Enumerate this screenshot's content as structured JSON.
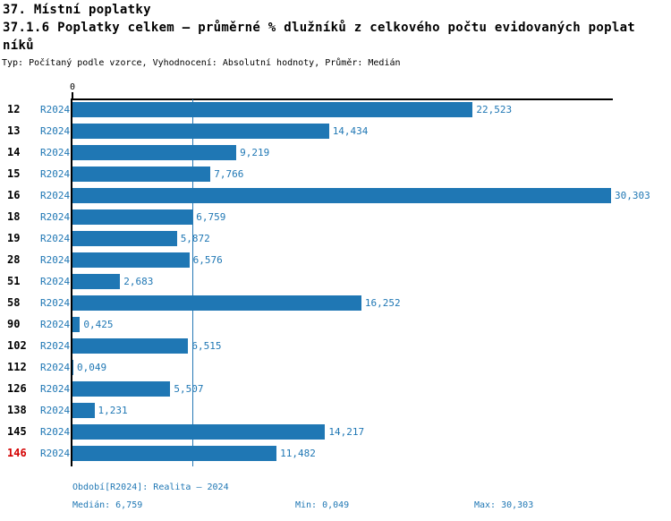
{
  "header": {
    "title": "37. Místní poplatky",
    "subtitle_line1": "37.1.6 Poplatky celkem – průměrné % dlužníků z celkového počtu evidovaných poplat",
    "subtitle_line2": "níků",
    "meta": "Typ: Počítaný podle vzorce, Vyhodnocení: Absolutní hodnoty, Průměr: Medián"
  },
  "chart": {
    "axis_zero_label": "0",
    "bar_color": "#1f77b4",
    "label_color": "#1f77b4",
    "median_line_color": "#2778b4",
    "highlight_color": "#d40000"
  },
  "chart_data": {
    "type": "bar",
    "orientation": "horizontal",
    "series_name": "R2024",
    "categories": [
      "12",
      "13",
      "14",
      "15",
      "16",
      "18",
      "19",
      "28",
      "51",
      "58",
      "90",
      "102",
      "112",
      "126",
      "138",
      "145",
      "146"
    ],
    "values": [
      22.523,
      14.434,
      9.219,
      7.766,
      30.303,
      6.759,
      5.872,
      6.576,
      2.683,
      16.252,
      0.425,
      6.515,
      0.049,
      5.507,
      1.231,
      14.217,
      11.482
    ],
    "value_labels": [
      "22,523",
      "14,434",
      "9,219",
      "7,766",
      "30,303",
      "6,759",
      "5,872",
      "6,576",
      "2,683",
      "16,252",
      "0,425",
      "6,515",
      "0,049",
      "5,507",
      "1,231",
      "14,217",
      "11,482"
    ],
    "xlim": [
      0,
      30.303
    ],
    "median": 6.759,
    "highlighted_category": "146",
    "grid": "single median line",
    "legend": "none"
  },
  "footer": {
    "period": "Období[R2024]: Realita – 2024",
    "median": "Medián: 6,759",
    "min": "Min: 0,049",
    "max": "Max: 30,303"
  }
}
